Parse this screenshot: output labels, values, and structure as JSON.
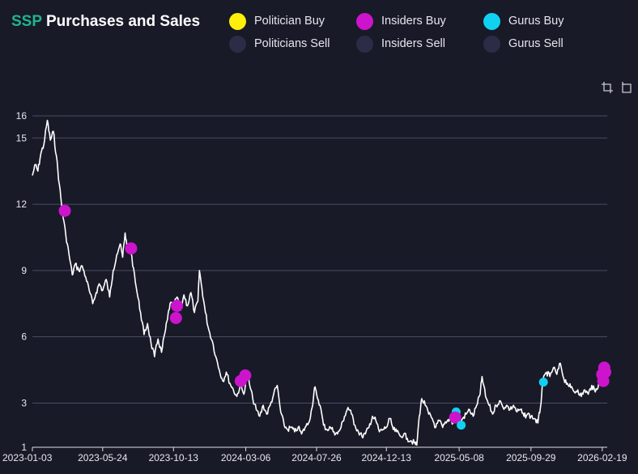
{
  "header": {
    "ticker": "SSP",
    "title_rest": "Purchases and Sales"
  },
  "legend": [
    {
      "label": "Politician Buy",
      "color": "#ffef0a",
      "active": true
    },
    {
      "label": "Insiders Buy",
      "color": "#cc14cc",
      "active": true
    },
    {
      "label": "Gurus Buy",
      "color": "#10d2f0",
      "active": true
    },
    {
      "label": "Politicians Sell",
      "color": "#2a2d45",
      "active": false
    },
    {
      "label": "Insiders Sell",
      "color": "#2a2d45",
      "active": false
    },
    {
      "label": "Gurus Sell",
      "color": "#2a2d45",
      "active": false
    }
  ],
  "toolbar": {
    "zoom_icon": "crop-zoom-icon",
    "reset_icon": "rotate-reset-icon"
  },
  "chart_data": {
    "type": "line",
    "title": "SSP Purchases and Sales",
    "xlabel": "",
    "ylabel": "",
    "ylim": [
      1,
      16
    ],
    "y_ticks": [
      1,
      3,
      6,
      9,
      12,
      15,
      16
    ],
    "x_tick_labels": [
      "2023-01-03",
      "2023-05-24",
      "2023-10-13",
      "2024-03-06",
      "2024-07-26",
      "2024-12-13",
      "2025-05-08",
      "2025-09-29",
      "2026-02-19"
    ],
    "grid": "horizontal",
    "legend_position": "top",
    "line_color": "#ffffff",
    "series": [
      {
        "name": "SSP",
        "points": [
          [
            "2023-01-03",
            13.3
          ],
          [
            "2023-01-09",
            13.8
          ],
          [
            "2023-01-14",
            13.5
          ],
          [
            "2023-01-20",
            14.3
          ],
          [
            "2023-01-26",
            14.7
          ],
          [
            "2023-02-02",
            15.8
          ],
          [
            "2023-02-08",
            14.9
          ],
          [
            "2023-02-14",
            15.3
          ],
          [
            "2023-02-20",
            14.2
          ],
          [
            "2023-02-26",
            12.9
          ],
          [
            "2023-03-04",
            11.7
          ],
          [
            "2023-03-11",
            10.6
          ],
          [
            "2023-03-17",
            9.8
          ],
          [
            "2023-03-24",
            8.8
          ],
          [
            "2023-03-30",
            9.3
          ],
          [
            "2023-04-06",
            9.0
          ],
          [
            "2023-04-13",
            9.2
          ],
          [
            "2023-04-20",
            8.7
          ],
          [
            "2023-04-27",
            8.1
          ],
          [
            "2023-05-04",
            7.5
          ],
          [
            "2023-05-11",
            8.0
          ],
          [
            "2023-05-17",
            8.4
          ],
          [
            "2023-05-24",
            8.1
          ],
          [
            "2023-05-31",
            8.6
          ],
          [
            "2023-06-07",
            7.8
          ],
          [
            "2023-06-14",
            9.0
          ],
          [
            "2023-06-21",
            9.7
          ],
          [
            "2023-06-28",
            10.2
          ],
          [
            "2023-07-03",
            9.6
          ],
          [
            "2023-07-08",
            10.7
          ],
          [
            "2023-07-13",
            9.9
          ],
          [
            "2023-07-18",
            10.0
          ],
          [
            "2023-07-25",
            9.1
          ],
          [
            "2023-08-01",
            8.0
          ],
          [
            "2023-08-08",
            7.1
          ],
          [
            "2023-08-15",
            6.1
          ],
          [
            "2023-08-22",
            6.6
          ],
          [
            "2023-08-29",
            5.7
          ],
          [
            "2023-09-05",
            5.1
          ],
          [
            "2023-09-12",
            5.9
          ],
          [
            "2023-09-19",
            5.3
          ],
          [
            "2023-09-26",
            6.2
          ],
          [
            "2023-10-01",
            6.8
          ],
          [
            "2023-10-06",
            7.5
          ],
          [
            "2023-10-13",
            7.4
          ],
          [
            "2023-10-20",
            7.8
          ],
          [
            "2023-10-27",
            7.2
          ],
          [
            "2023-11-03",
            7.9
          ],
          [
            "2023-11-10",
            7.4
          ],
          [
            "2023-11-17",
            8.0
          ],
          [
            "2023-11-24",
            7.1
          ],
          [
            "2023-12-01",
            7.6
          ],
          [
            "2023-12-04",
            9.0
          ],
          [
            "2023-12-09",
            8.2
          ],
          [
            "2023-12-16",
            7.1
          ],
          [
            "2023-12-23",
            6.3
          ],
          [
            "2023-12-30",
            5.8
          ],
          [
            "2024-01-06",
            5.1
          ],
          [
            "2024-01-13",
            4.5
          ],
          [
            "2024-01-20",
            4.0
          ],
          [
            "2024-01-27",
            4.4
          ],
          [
            "2024-02-03",
            3.9
          ],
          [
            "2024-02-10",
            3.6
          ],
          [
            "2024-02-17",
            3.3
          ],
          [
            "2024-02-24",
            3.8
          ],
          [
            "2024-03-02",
            3.4
          ],
          [
            "2024-03-09",
            4.4
          ],
          [
            "2024-03-13",
            3.9
          ],
          [
            "2024-03-20",
            3.2
          ],
          [
            "2024-03-27",
            2.7
          ],
          [
            "2024-04-03",
            2.4
          ],
          [
            "2024-04-10",
            2.9
          ],
          [
            "2024-04-17",
            2.5
          ],
          [
            "2024-04-24",
            2.9
          ],
          [
            "2024-05-01",
            3.4
          ],
          [
            "2024-05-08",
            3.8
          ],
          [
            "2024-05-15",
            2.6
          ],
          [
            "2024-05-22",
            2.0
          ],
          [
            "2024-05-29",
            1.8
          ],
          [
            "2024-06-05",
            1.9
          ],
          [
            "2024-06-12",
            1.7
          ],
          [
            "2024-06-19",
            1.9
          ],
          [
            "2024-06-26",
            1.6
          ],
          [
            "2024-07-03",
            1.9
          ],
          [
            "2024-07-10",
            2.1
          ],
          [
            "2024-07-17",
            2.8
          ],
          [
            "2024-07-22",
            3.7
          ],
          [
            "2024-07-26",
            3.4
          ],
          [
            "2024-08-02",
            2.9
          ],
          [
            "2024-08-09",
            2.0
          ],
          [
            "2024-08-16",
            1.8
          ],
          [
            "2024-08-23",
            1.9
          ],
          [
            "2024-08-30",
            1.7
          ],
          [
            "2024-09-06",
            1.6
          ],
          [
            "2024-09-13",
            1.9
          ],
          [
            "2024-09-20",
            2.4
          ],
          [
            "2024-09-27",
            2.8
          ],
          [
            "2024-10-04",
            2.5
          ],
          [
            "2024-10-11",
            2.0
          ],
          [
            "2024-10-18",
            1.7
          ],
          [
            "2024-10-25",
            1.5
          ],
          [
            "2024-11-01",
            1.6
          ],
          [
            "2024-11-08",
            1.9
          ],
          [
            "2024-11-15",
            2.4
          ],
          [
            "2024-11-22",
            2.2
          ],
          [
            "2024-11-29",
            1.7
          ],
          [
            "2024-12-06",
            1.8
          ],
          [
            "2024-12-13",
            1.9
          ],
          [
            "2024-12-20",
            2.3
          ],
          [
            "2024-12-27",
            1.8
          ],
          [
            "2025-01-03",
            1.7
          ],
          [
            "2025-01-10",
            1.5
          ],
          [
            "2025-01-17",
            1.6
          ],
          [
            "2025-01-24",
            1.4
          ],
          [
            "2025-01-31",
            1.3
          ],
          [
            "2025-02-07",
            1.2
          ],
          [
            "2025-02-12",
            1.1
          ],
          [
            "2025-02-17",
            2.4
          ],
          [
            "2025-02-22",
            3.2
          ],
          [
            "2025-03-01",
            2.9
          ],
          [
            "2025-03-08",
            2.5
          ],
          [
            "2025-03-15",
            2.3
          ],
          [
            "2025-03-22",
            1.9
          ],
          [
            "2025-03-29",
            2.2
          ],
          [
            "2025-04-05",
            1.9
          ],
          [
            "2025-04-12",
            2.1
          ],
          [
            "2025-04-19",
            2.3
          ],
          [
            "2025-04-26",
            2.1
          ],
          [
            "2025-05-03",
            2.4
          ],
          [
            "2025-05-08",
            2.0
          ],
          [
            "2025-05-15",
            2.3
          ],
          [
            "2025-05-22",
            2.5
          ],
          [
            "2025-05-29",
            2.7
          ],
          [
            "2025-06-05",
            2.4
          ],
          [
            "2025-06-12",
            2.9
          ],
          [
            "2025-06-19",
            3.4
          ],
          [
            "2025-06-23",
            4.2
          ],
          [
            "2025-06-30",
            3.3
          ],
          [
            "2025-07-07",
            2.9
          ],
          [
            "2025-07-14",
            2.5
          ],
          [
            "2025-07-21",
            2.9
          ],
          [
            "2025-07-28",
            3.1
          ],
          [
            "2025-08-04",
            2.8
          ],
          [
            "2025-08-11",
            2.9
          ],
          [
            "2025-08-18",
            2.7
          ],
          [
            "2025-08-25",
            2.9
          ],
          [
            "2025-09-01",
            2.6
          ],
          [
            "2025-09-08",
            2.7
          ],
          [
            "2025-09-15",
            2.4
          ],
          [
            "2025-09-22",
            2.5
          ],
          [
            "2025-09-29",
            2.4
          ],
          [
            "2025-10-06",
            2.3
          ],
          [
            "2025-10-13",
            2.1
          ],
          [
            "2025-10-18",
            2.8
          ],
          [
            "2025-10-23",
            4.0
          ],
          [
            "2025-10-30",
            4.4
          ],
          [
            "2025-11-06",
            4.2
          ],
          [
            "2025-11-13",
            4.6
          ],
          [
            "2025-11-20",
            4.3
          ],
          [
            "2025-11-27",
            4.8
          ],
          [
            "2025-12-04",
            4.1
          ],
          [
            "2025-12-11",
            3.9
          ],
          [
            "2025-12-18",
            3.7
          ],
          [
            "2025-12-25",
            3.5
          ],
          [
            "2026-01-01",
            3.6
          ],
          [
            "2026-01-08",
            3.3
          ],
          [
            "2026-01-15",
            3.6
          ],
          [
            "2026-01-22",
            3.4
          ],
          [
            "2026-01-29",
            3.8
          ],
          [
            "2026-02-05",
            3.5
          ],
          [
            "2026-02-12",
            3.9
          ],
          [
            "2026-02-19",
            4.1
          ],
          [
            "2026-02-24",
            4.4
          ]
        ]
      }
    ],
    "markers": [
      {
        "type": "Insiders Buy",
        "date": "2023-03-09",
        "value": 11.7
      },
      {
        "type": "Insiders Buy",
        "date": "2023-07-20",
        "value": 10.0
      },
      {
        "type": "Insiders Buy",
        "date": "2023-10-18",
        "value": 6.85
      },
      {
        "type": "Insiders Buy",
        "date": "2023-10-20",
        "value": 7.4
      },
      {
        "type": "Insiders Buy",
        "date": "2024-02-25",
        "value": 4.0
      },
      {
        "type": "Insiders Buy",
        "date": "2024-03-05",
        "value": 4.25
      },
      {
        "type": "Gurus Buy",
        "date": "2025-04-28",
        "value": 2.3
      },
      {
        "type": "Gurus Buy",
        "date": "2025-05-02",
        "value": 2.6
      },
      {
        "type": "Insiders Buy",
        "date": "2025-04-30",
        "value": 2.35
      },
      {
        "type": "Gurus Buy",
        "date": "2025-05-12",
        "value": 2.0
      },
      {
        "type": "Gurus Buy",
        "date": "2025-10-24",
        "value": 3.95
      },
      {
        "type": "Insiders Buy",
        "date": "2026-02-19",
        "value": 4.3
      },
      {
        "type": "Insiders Buy",
        "date": "2026-02-21",
        "value": 4.0
      },
      {
        "type": "Insiders Buy",
        "date": "2026-02-23",
        "value": 4.6
      },
      {
        "type": "Insiders Buy",
        "date": "2026-02-25",
        "value": 4.4
      }
    ]
  }
}
